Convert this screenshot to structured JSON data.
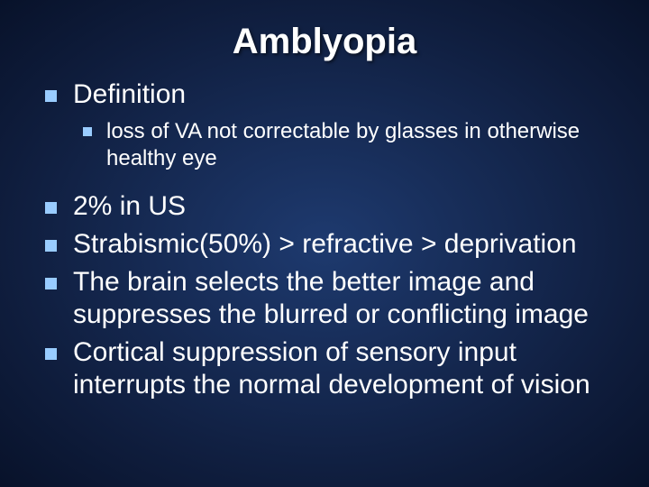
{
  "slide": {
    "title": "Amblyopia",
    "bullets": [
      {
        "level": 1,
        "text": "Definition"
      },
      {
        "level": 2,
        "text": "loss of VA not correctable by glasses in otherwise healthy eye"
      },
      {
        "level": 1,
        "text": "2% in US"
      },
      {
        "level": 1,
        "text": "Strabismic(50%) > refractive > deprivation"
      },
      {
        "level": 1,
        "text": "The brain selects the better image and suppresses the blurred or conflicting image"
      },
      {
        "level": 1,
        "text": "Cortical suppression of sensory input interrupts the normal development of vision"
      }
    ],
    "colors": {
      "background_center": "#1e3a6f",
      "background_edge": "#08122a",
      "text": "#ffffff",
      "bullet": "#99ccff"
    },
    "fonts": {
      "title_size": 40,
      "l1_size": 30,
      "l2_size": 24,
      "family": "Arial"
    }
  }
}
